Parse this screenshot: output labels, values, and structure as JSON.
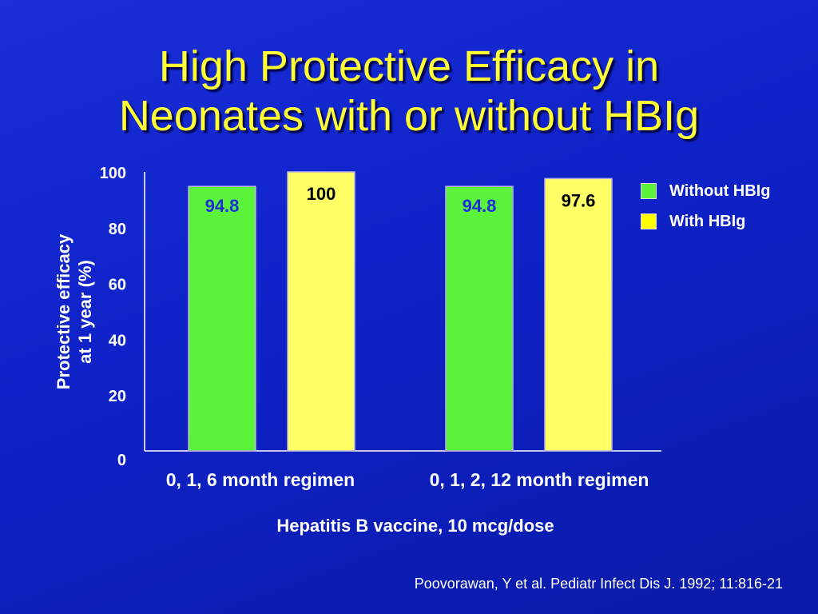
{
  "slide": {
    "title_lines": [
      "High Protective Efficacy in",
      "Neonates with or without HBIg"
    ],
    "citation": "Poovorawan, Y et al.  Pediatr Infect Dis J. 1992; 11:816-21"
  },
  "chart_data": {
    "type": "bar",
    "title": "High Protective Efficacy in Neonates with or without HBIg",
    "categories": [
      "0, 1, 6 month regimen",
      "0, 1, 2, 12 month regimen"
    ],
    "series": [
      {
        "name": "Without HBIg",
        "values": [
          94.8,
          94.8
        ],
        "color": "#5cf23c",
        "label_color": "#1a2fd8"
      },
      {
        "name": "With HBIg",
        "values": [
          100,
          97.6
        ],
        "color": "#ffff66",
        "label_color": "#000000"
      }
    ],
    "data_labels": [
      [
        "94.8",
        "94.8"
      ],
      [
        "100",
        "97.6"
      ]
    ],
    "ylabel_lines": [
      "Protective efficacy",
      "at 1 year (%)"
    ],
    "xlabel": "Hepatitis B vaccine, 10 mcg/dose",
    "ylim": [
      0,
      100
    ],
    "yticks": [
      "0",
      "20",
      "40",
      "60",
      "80",
      "100"
    ],
    "legend": "top-right",
    "grid": false
  }
}
